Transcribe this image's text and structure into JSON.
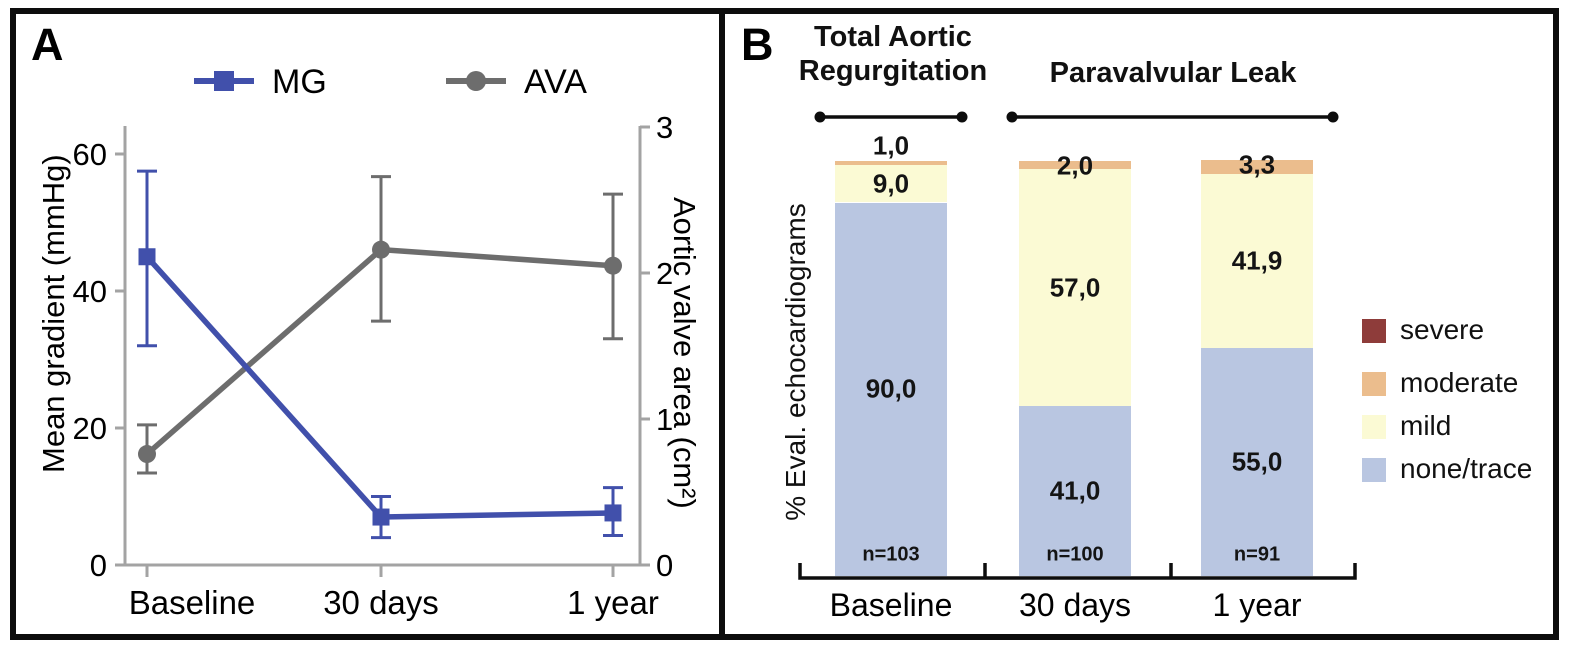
{
  "panels": {
    "a": {
      "label": "A"
    },
    "b": {
      "label": "B"
    }
  },
  "chart_data": [
    {
      "type": "line",
      "panel": "A",
      "categories": [
        "Baseline",
        "30 days",
        "1 year"
      ],
      "left_axis": {
        "label": "Mean gradient (mmHg)",
        "ticks": [
          0,
          20,
          40,
          60
        ],
        "range": [
          0,
          64
        ]
      },
      "right_axis": {
        "label": "Aortic valve area (cm²)",
        "ticks": [
          0,
          1,
          2,
          3
        ],
        "range": [
          0,
          3
        ]
      },
      "series": [
        {
          "name": "AVA",
          "axis": "right",
          "marker": "circle",
          "color": "#6d6d6d",
          "values": [
            0.76,
            2.16,
            2.05
          ],
          "err_low": [
            0.63,
            1.67,
            1.55
          ],
          "err_high": [
            0.96,
            2.66,
            2.54
          ]
        },
        {
          "name": "MG",
          "axis": "left",
          "marker": "square",
          "color": "#4150ab",
          "values": [
            45,
            7,
            7.6
          ],
          "err_low": [
            32,
            4,
            4.3
          ],
          "err_high": [
            57.5,
            10,
            11.3
          ]
        }
      ],
      "legend_order": [
        "MG",
        "AVA"
      ],
      "legend_position": "top"
    },
    {
      "type": "stacked-bar",
      "panel": "B",
      "group_headers": [
        "Total Aortic Regurgitation",
        "Paravalvular Leak"
      ],
      "group_spans": [
        [
          0,
          0
        ],
        [
          1,
          2
        ]
      ],
      "ylabel": "% Eval. echocardiograms",
      "categories": [
        "Baseline",
        "30 days",
        "1 year"
      ],
      "n_labels": [
        "n=103",
        "n=100",
        "n=91"
      ],
      "series": [
        {
          "name": "none/trace",
          "color": "#b9c6e1",
          "values": [
            90.0,
            41.0,
            55.0
          ],
          "value_labels": [
            "90,0",
            "41,0",
            "55,0"
          ]
        },
        {
          "name": "mild",
          "color": "#fbfad4",
          "values": [
            9.0,
            57.0,
            41.9
          ],
          "value_labels": [
            "9,0",
            "57,0",
            "41,9"
          ]
        },
        {
          "name": "moderate",
          "color": "#ebbd8d",
          "values": [
            1.0,
            2.0,
            3.3
          ],
          "value_labels": [
            "1,0",
            "2,0",
            "3,3"
          ]
        },
        {
          "name": "severe",
          "color": "#8e3c3a",
          "values": [
            0,
            0,
            0
          ],
          "value_labels": [
            "",
            "",
            ""
          ]
        }
      ],
      "legend": [
        {
          "label": "severe",
          "color": "#8e3c3a"
        },
        {
          "label": "moderate",
          "color": "#ebbd8d"
        },
        {
          "label": "mild",
          "color": "#fbfad4"
        },
        {
          "label": "none/trace",
          "color": "#b9c6e1"
        }
      ],
      "ylim": [
        0,
        100
      ]
    }
  ]
}
